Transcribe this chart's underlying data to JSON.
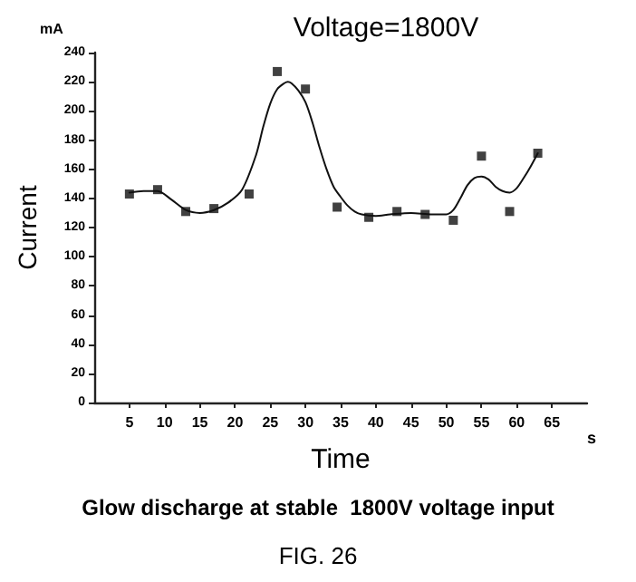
{
  "chart_data": {
    "type": "scatter",
    "title": "Voltage=1800V",
    "xlabel": "Time",
    "ylabel": "Current",
    "annotations": [
      "mA",
      "s",
      "Glow discharge at stable  1800V voltage input",
      "FIG. 26"
    ],
    "xlim": [
      0,
      70
    ],
    "xticks": [
      5,
      10,
      15,
      20,
      25,
      30,
      35,
      40,
      45,
      50,
      55,
      60,
      65
    ],
    "ylim": [
      0,
      240
    ],
    "yticks": [
      0,
      20,
      40,
      60,
      80,
      100,
      120,
      140,
      160,
      180,
      200,
      220,
      240
    ],
    "grid": false,
    "series": [
      {
        "marker": "square",
        "color": "#111111",
        "x": [
          5,
          9,
          13,
          17,
          22,
          26,
          30,
          34.5,
          39,
          43,
          47,
          51,
          55,
          59,
          63
        ],
        "values": [
          143,
          146,
          131,
          133,
          143,
          227,
          215,
          134,
          127,
          131,
          129,
          125,
          169,
          131,
          171
        ]
      },
      {
        "type": "line",
        "marker": "none",
        "line_style": "solid",
        "color": "#111111",
        "x": [
          5,
          7,
          9,
          11,
          13,
          15,
          17,
          19,
          21,
          23,
          24,
          25,
          26,
          27,
          27.5,
          28,
          29,
          30,
          31,
          32,
          33,
          34,
          35,
          36,
          37,
          38,
          40,
          42,
          45,
          48,
          50,
          51,
          52,
          53,
          54,
          55,
          56,
          57,
          58,
          59,
          60,
          61,
          62,
          63
        ],
        "values": [
          144,
          145,
          145,
          139,
          132,
          130,
          132,
          137,
          146,
          170,
          189,
          205,
          215,
          219,
          220,
          219,
          214,
          206,
          192,
          175,
          160,
          148,
          141,
          135,
          131,
          129,
          128,
          129,
          130,
          129,
          129,
          132,
          140,
          149,
          154,
          155,
          153,
          148,
          145,
          144,
          147,
          154,
          162,
          171
        ]
      }
    ]
  }
}
